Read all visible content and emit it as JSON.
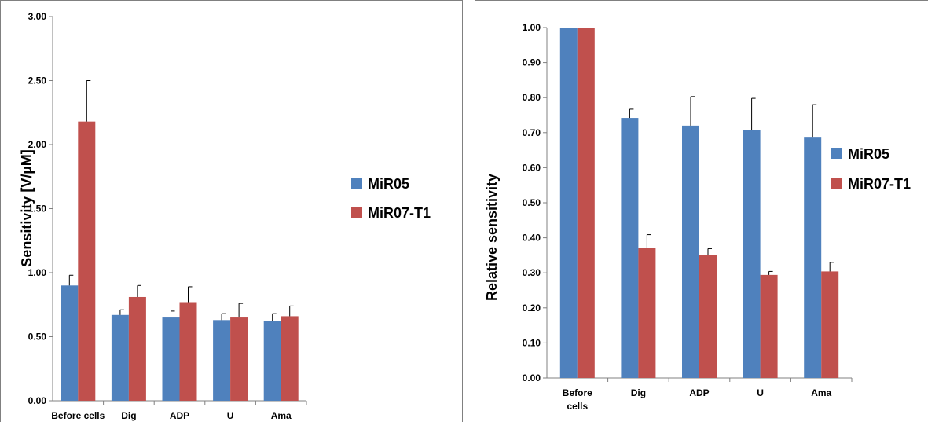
{
  "chart_data": [
    {
      "type": "bar",
      "title": "",
      "xlabel": "",
      "ylabel": "Sensitivity [V/µM]",
      "ylim": [
        0,
        3
      ],
      "yticks": [
        "0.00",
        "0.50",
        "1.00",
        "1.50",
        "2.00",
        "2.50",
        "3.00"
      ],
      "categories": [
        "Before cells",
        "Dig",
        "ADP",
        "U",
        "Ama"
      ],
      "grid": false,
      "legend_position": "right",
      "series": [
        {
          "name": "MiR05",
          "color": "#4F81BD",
          "values": [
            0.9,
            0.67,
            0.65,
            0.63,
            0.62
          ],
          "errors": [
            0.08,
            0.04,
            0.05,
            0.05,
            0.06
          ]
        },
        {
          "name": "MiR07-T1",
          "color": "#C0504D",
          "values": [
            2.18,
            0.81,
            0.77,
            0.65,
            0.66
          ],
          "errors": [
            0.32,
            0.09,
            0.12,
            0.11,
            0.08
          ]
        }
      ]
    },
    {
      "type": "bar",
      "title": "",
      "xlabel": "",
      "ylabel": "Relative sensitivity",
      "ylim": [
        0,
        1
      ],
      "yticks": [
        "0.00",
        "0.10",
        "0.20",
        "0.30",
        "0.40",
        "0.50",
        "0.60",
        "0.70",
        "0.80",
        "0.90",
        "1.00"
      ],
      "categories": [
        "Before cells",
        "Dig",
        "ADP",
        "U",
        "Ama"
      ],
      "grid": false,
      "legend_position": "right",
      "series": [
        {
          "name": "MiR05",
          "color": "#4F81BD",
          "values": [
            1.0,
            0.742,
            0.72,
            0.708,
            0.688
          ],
          "errors": [
            0,
            0.025,
            0.083,
            0.09,
            0.092
          ]
        },
        {
          "name": "MiR07-T1",
          "color": "#C0504D",
          "values": [
            1.0,
            0.372,
            0.352,
            0.294,
            0.304
          ],
          "errors": [
            0,
            0.037,
            0.017,
            0.01,
            0.026
          ]
        }
      ]
    }
  ]
}
